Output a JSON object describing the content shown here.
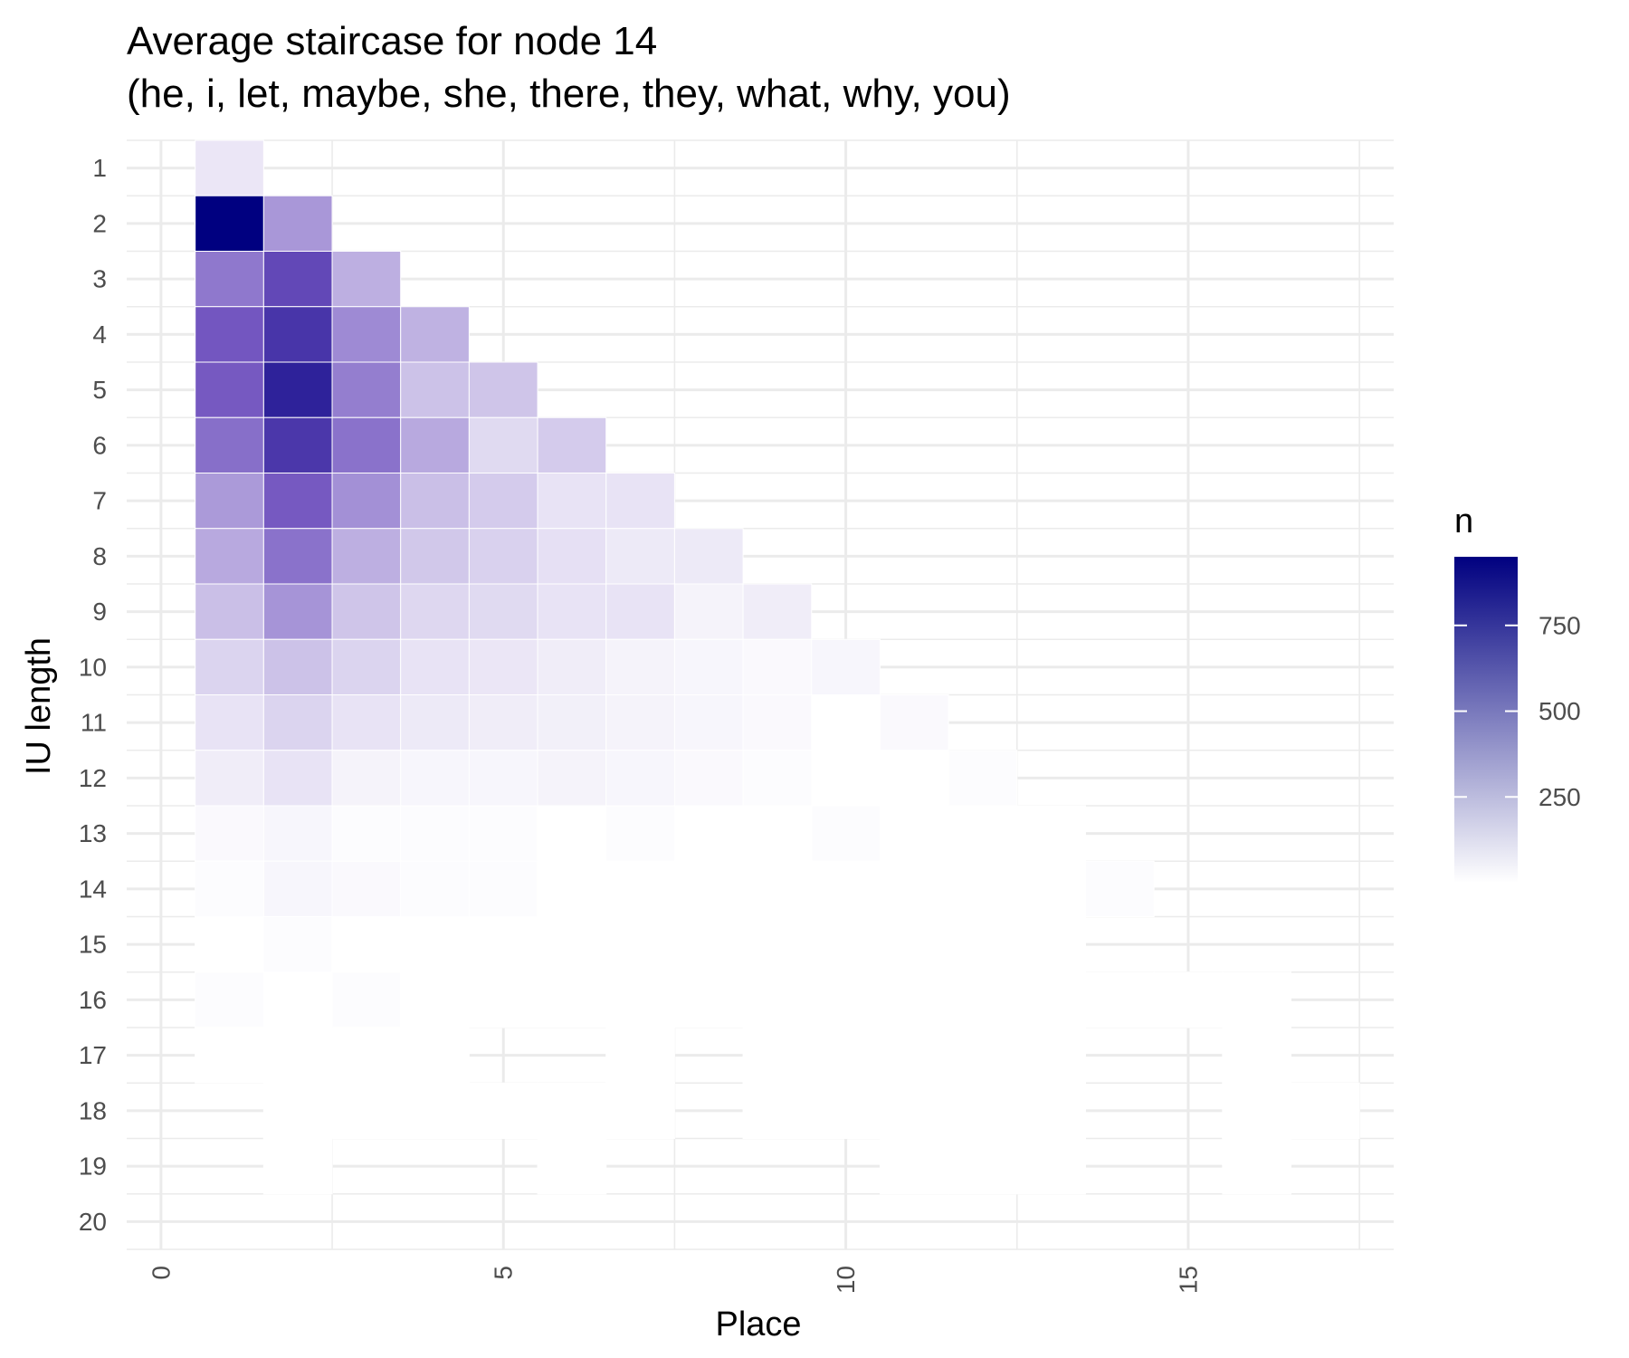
{
  "chart_data": {
    "type": "heatmap",
    "title_line1": "Average staircase for node 14",
    "title_line2": "(he, i, let, maybe, she, there, they, what, why, you)",
    "xlabel": "Place",
    "ylabel": "IU length",
    "x_ticks": [
      "0",
      "5",
      "10",
      "15"
    ],
    "y_ticks": [
      "1",
      "2",
      "3",
      "4",
      "5",
      "6",
      "7",
      "8",
      "9",
      "10",
      "11",
      "12",
      "13",
      "14",
      "15",
      "16",
      "17",
      "18",
      "19",
      "20"
    ],
    "xlim": [
      -0.5,
      18
    ],
    "ylim": [
      0.5,
      20.5
    ],
    "grid": true,
    "legend": {
      "title": "n",
      "position": "right",
      "labels": [
        "250",
        "500",
        "750"
      ],
      "values": [
        250,
        500,
        750
      ],
      "min": 0,
      "max": 950,
      "color_low": "#ffffff",
      "color_high": "#000080"
    },
    "cells": [
      {
        "length": 1,
        "values": [
          80
        ]
      },
      {
        "length": 2,
        "values": [
          950,
          340
        ]
      },
      {
        "length": 3,
        "values": [
          440,
          610,
          260
        ]
      },
      {
        "length": 4,
        "values": [
          550,
          700,
          380,
          250
        ]
      },
      {
        "length": 5,
        "values": [
          540,
          790,
          420,
          200,
          190
        ]
      },
      {
        "length": 6,
        "values": [
          470,
          690,
          460,
          280,
          120,
          170
        ]
      },
      {
        "length": 7,
        "values": [
          330,
          540,
          360,
          210,
          170,
          90,
          90
        ]
      },
      {
        "length": 8,
        "values": [
          280,
          460,
          260,
          180,
          150,
          100,
          70,
          70
        ]
      },
      {
        "length": 9,
        "values": [
          210,
          350,
          190,
          130,
          120,
          90,
          90,
          40,
          60
        ]
      },
      {
        "length": 10,
        "values": [
          140,
          200,
          140,
          90,
          80,
          60,
          40,
          30,
          20,
          30
        ]
      },
      {
        "length": 11,
        "values": [
          90,
          140,
          90,
          70,
          60,
          50,
          40,
          30,
          20,
          0,
          20
        ]
      },
      {
        "length": 12,
        "values": [
          60,
          90,
          40,
          30,
          30,
          40,
          30,
          20,
          10,
          0,
          0,
          10
        ]
      },
      {
        "length": 13,
        "values": [
          20,
          30,
          10,
          10,
          10,
          0,
          10,
          0,
          0,
          10,
          0,
          0,
          0
        ]
      },
      {
        "length": 14,
        "values": [
          10,
          30,
          20,
          10,
          10,
          0,
          0,
          0,
          0,
          0,
          0,
          0,
          0,
          10
        ]
      },
      {
        "length": 15,
        "values": [
          0,
          10,
          0,
          0,
          0,
          0,
          0,
          0,
          0,
          0,
          0,
          0,
          0
        ]
      },
      {
        "length": 16,
        "values": [
          10,
          0,
          10,
          0,
          0,
          0,
          0,
          0,
          0,
          0,
          0,
          0,
          0,
          0,
          0,
          0
        ]
      },
      {
        "length": 17,
        "values": [
          0,
          0,
          0,
          0,
          null,
          null,
          0,
          null,
          0,
          0,
          0,
          0,
          0,
          null,
          null,
          0
        ]
      },
      {
        "length": 18,
        "values": [
          null,
          0,
          0,
          0,
          0,
          0,
          0,
          null,
          0,
          0,
          0,
          0,
          0,
          null,
          null,
          0,
          0
        ]
      },
      {
        "length": 19,
        "values": [
          null,
          0,
          null,
          null,
          null,
          0,
          null,
          null,
          null,
          null,
          0,
          0,
          0,
          null,
          null,
          0
        ]
      }
    ]
  }
}
